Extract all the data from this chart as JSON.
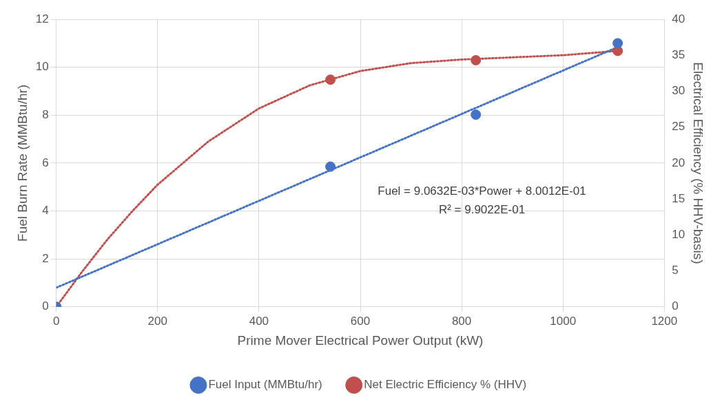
{
  "chart_data": {
    "type": "scatter",
    "xlabel": "Prime Mover Electrical Power Output (kW)",
    "ylabel": "Fuel Burn Rate (MMBtu/hr)",
    "y2label": "Electrical Efficiency (% HHV-basis)",
    "x": [
      0,
      541,
      828,
      1108
    ],
    "series": [
      {
        "name": "Fuel Input (MMBtu/hr)",
        "color": "#4472c4",
        "values": [
          0,
          5.85,
          8.02,
          11.0
        ]
      },
      {
        "name": "Net Electric Efficiency % (HHV)",
        "color": "#c0504d",
        "axis": "y2",
        "values": [
          0,
          31.6,
          34.3,
          35.6
        ]
      },
      {
        "type": "line",
        "color": "#4472c4",
        "line_style": "dotted",
        "marker": "none",
        "x": [
          0,
          1108
        ],
        "values": [
          0.8,
          10.84
        ]
      },
      {
        "type": "line",
        "color": "#c0504d",
        "line_style": "dotted",
        "marker": "none",
        "axis": "y2",
        "x": [
          0,
          50,
          100,
          150,
          200,
          300,
          400,
          500,
          600,
          700,
          800,
          900,
          1000,
          1108
        ],
        "values": [
          0,
          4.8,
          9.3,
          13.3,
          17,
          23,
          27.6,
          30.8,
          32.8,
          33.9,
          34.4,
          34.7,
          35,
          35.6
        ]
      }
    ],
    "xlim": [
      0,
      1200
    ],
    "xticks": [
      0,
      200,
      400,
      600,
      800,
      1000,
      1200
    ],
    "ylim": [
      0,
      12
    ],
    "yticks": [
      0,
      2,
      4,
      6,
      8,
      10,
      12
    ],
    "y2lim": [
      0,
      40
    ],
    "y2ticks": [
      0,
      5,
      10,
      15,
      20,
      25,
      30,
      35,
      40
    ],
    "grid": true,
    "legend": "bottom",
    "marker": "circle",
    "annotations": [
      "Fuel = 9.0632E-03*Power + 8.0012E-01",
      "R² = 9.9022E-01"
    ]
  }
}
